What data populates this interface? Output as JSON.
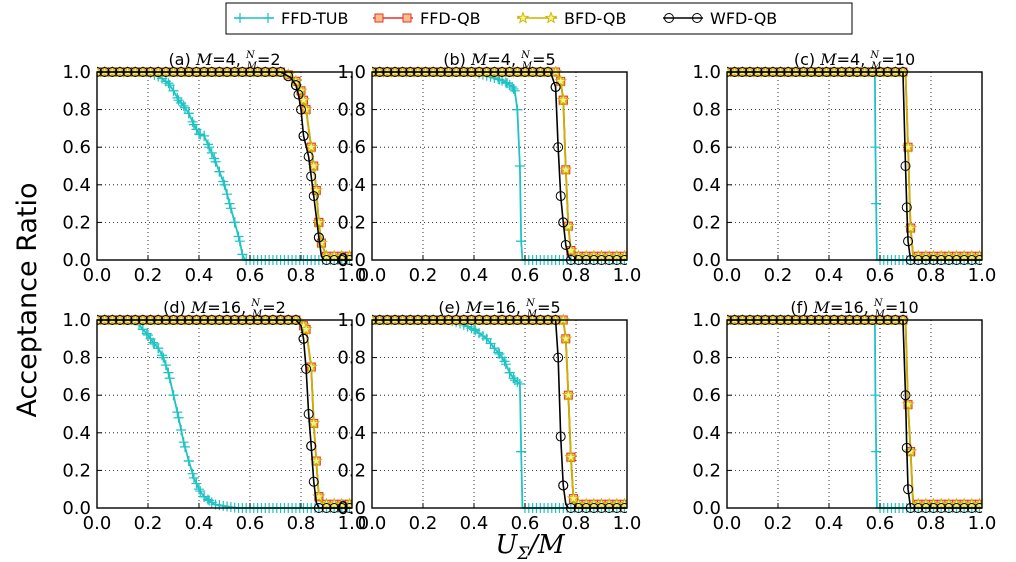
{
  "figure": {
    "ylabel": "Acceptance Ratio",
    "xlabel": "U_Σ/M",
    "xlabel_main": "U",
    "xlabel_sub": "Σ",
    "xlabel_rest": "/M"
  },
  "legend": {
    "entries": [
      {
        "label": "FFD-TUB",
        "color": "#1fc3c3",
        "marker": "plus"
      },
      {
        "label": "FFD-QB",
        "color": "#e8312a",
        "marker": "square"
      },
      {
        "label": "BFD-QB",
        "color": "#c8b400",
        "marker": "star"
      },
      {
        "label": "WFD-QB",
        "color": "#000000",
        "marker": "circle"
      }
    ]
  },
  "colors": {
    "FFD-TUB": "#1fc3c3",
    "FFD-QB": "#e8312a",
    "BFD-QB": "#c8b400",
    "WFD-QB": "#000000"
  },
  "chart_data": [
    {
      "type": "line",
      "title": "(a) M=4, N/M=2",
      "title_parts": {
        "prefix": "(a) ",
        "m": "M",
        "m_val": "=4, ",
        "frac_num": "N",
        "frac_den": "M",
        "n_val": "=2"
      },
      "xlim": [
        0,
        1
      ],
      "ylim": [
        0,
        1
      ],
      "xticks": [
        "0.0",
        "0.2",
        "0.4",
        "0.6",
        "0.8",
        "1.0"
      ],
      "yticks": [
        "0.0",
        "0.2",
        "0.4",
        "0.6",
        "0.8",
        "1.0"
      ],
      "grid": true,
      "series": [
        {
          "name": "FFD-TUB",
          "x": [
            0,
            0.2,
            0.25,
            0.28,
            0.3,
            0.32,
            0.34,
            0.36,
            0.38,
            0.4,
            0.42,
            0.44,
            0.46,
            0.48,
            0.5,
            0.52,
            0.54,
            0.56,
            0.57,
            0.58,
            1.0
          ],
          "y": [
            1,
            1,
            0.97,
            0.94,
            0.9,
            0.85,
            0.82,
            0.78,
            0.72,
            0.67,
            0.66,
            0.6,
            0.54,
            0.47,
            0.4,
            0.3,
            0.2,
            0.1,
            0.03,
            0,
            0
          ]
        },
        {
          "name": "FFD-QB",
          "x": [
            0,
            0.72,
            0.76,
            0.78,
            0.8,
            0.82,
            0.84,
            0.85,
            0.86,
            0.87,
            0.88,
            0.9,
            1.0
          ],
          "y": [
            1,
            1,
            0.98,
            0.95,
            0.9,
            0.8,
            0.6,
            0.5,
            0.37,
            0.2,
            0.09,
            0.02,
            0.02
          ]
        },
        {
          "name": "BFD-QB",
          "x": [
            0,
            0.72,
            0.76,
            0.78,
            0.8,
            0.82,
            0.84,
            0.85,
            0.86,
            0.87,
            0.88,
            0.9,
            1.0
          ],
          "y": [
            1,
            1,
            0.98,
            0.95,
            0.9,
            0.8,
            0.6,
            0.5,
            0.37,
            0.2,
            0.09,
            0.02,
            0.02
          ]
        },
        {
          "name": "WFD-QB",
          "x": [
            0,
            0.72,
            0.76,
            0.78,
            0.79,
            0.8,
            0.81,
            0.83,
            0.85,
            0.87,
            0.88,
            0.89,
            1.0
          ],
          "y": [
            1,
            1,
            0.97,
            0.93,
            0.88,
            0.8,
            0.66,
            0.55,
            0.34,
            0.12,
            0.02,
            0,
            0
          ]
        }
      ]
    },
    {
      "type": "line",
      "title": "(b) M=4, N/M=5",
      "title_parts": {
        "prefix": "(b) ",
        "m": "M",
        "m_val": "=4, ",
        "frac_num": "N",
        "frac_den": "M",
        "n_val": "=5"
      },
      "xlim": [
        0,
        1
      ],
      "ylim": [
        0,
        1
      ],
      "xticks": [
        "0.0",
        "0.2",
        "0.4",
        "0.6",
        "0.8",
        "1.0"
      ],
      "yticks": [
        "0.0",
        "0.2",
        "0.4",
        "0.6",
        "0.8",
        "1.0"
      ],
      "grid": true,
      "series": [
        {
          "name": "FFD-TUB",
          "x": [
            0,
            0.4,
            0.45,
            0.5,
            0.53,
            0.55,
            0.56,
            0.57,
            0.58,
            0.585,
            0.59,
            1.0
          ],
          "y": [
            1,
            1,
            0.98,
            0.96,
            0.94,
            0.92,
            0.9,
            0.8,
            0.5,
            0.1,
            0,
            0
          ]
        },
        {
          "name": "FFD-QB",
          "x": [
            0,
            0.72,
            0.74,
            0.75,
            0.76,
            0.77,
            0.78,
            0.8,
            1.0
          ],
          "y": [
            1,
            1,
            0.95,
            0.85,
            0.48,
            0.18,
            0.05,
            0.02,
            0.02
          ]
        },
        {
          "name": "BFD-QB",
          "x": [
            0,
            0.72,
            0.74,
            0.75,
            0.76,
            0.77,
            0.78,
            0.8,
            1.0
          ],
          "y": [
            1,
            1,
            0.95,
            0.85,
            0.48,
            0.18,
            0.05,
            0.02,
            0.02
          ]
        },
        {
          "name": "WFD-QB",
          "x": [
            0,
            0.7,
            0.72,
            0.73,
            0.74,
            0.75,
            0.76,
            0.77,
            0.78,
            1.0
          ],
          "y": [
            1,
            1,
            0.92,
            0.6,
            0.34,
            0.2,
            0.08,
            0.02,
            0,
            0
          ]
        }
      ]
    },
    {
      "type": "line",
      "title": "(c) M=4, N/M=10",
      "title_parts": {
        "prefix": "(c) ",
        "m": "M",
        "m_val": "=4, ",
        "frac_num": "N",
        "frac_den": "M",
        "n_val": "=10"
      },
      "xlim": [
        0,
        1
      ],
      "ylim": [
        0,
        1
      ],
      "xticks": [
        "0.0",
        "0.2",
        "0.4",
        "0.6",
        "0.8",
        "1.0"
      ],
      "yticks": [
        "0.0",
        "0.2",
        "0.4",
        "0.6",
        "0.8",
        "1.0"
      ],
      "grid": true,
      "series": [
        {
          "name": "FFD-TUB",
          "x": [
            0,
            0.58,
            0.582,
            0.588,
            1.0
          ],
          "y": [
            1,
            1,
            0.6,
            0,
            0
          ]
        },
        {
          "name": "FFD-QB",
          "x": [
            0,
            0.7,
            0.71,
            0.72,
            0.73,
            1.0
          ],
          "y": [
            1,
            1,
            0.6,
            0.17,
            0.02,
            0.02
          ]
        },
        {
          "name": "BFD-QB",
          "x": [
            0,
            0.7,
            0.71,
            0.72,
            0.73,
            1.0
          ],
          "y": [
            1,
            1,
            0.6,
            0.17,
            0.02,
            0.02
          ]
        },
        {
          "name": "WFD-QB",
          "x": [
            0,
            0.69,
            0.7,
            0.705,
            0.71,
            0.72,
            1.0
          ],
          "y": [
            1,
            1,
            0.5,
            0.28,
            0.1,
            0,
            0
          ]
        }
      ]
    },
    {
      "type": "line",
      "title": "(d) M=16, N/M=2",
      "title_parts": {
        "prefix": "(d) ",
        "m": "M",
        "m_val": "=16, ",
        "frac_num": "N",
        "frac_den": "M",
        "n_val": "=2"
      },
      "xlim": [
        0,
        1
      ],
      "ylim": [
        0,
        1
      ],
      "xticks": [
        "0.0",
        "0.2",
        "0.4",
        "0.6",
        "0.8",
        "1.0"
      ],
      "yticks": [
        "0.0",
        "0.2",
        "0.4",
        "0.6",
        "0.8",
        "1.0"
      ],
      "grid": true,
      "series": [
        {
          "name": "FFD-TUB",
          "x": [
            0,
            0.15,
            0.18,
            0.2,
            0.22,
            0.24,
            0.26,
            0.28,
            0.3,
            0.32,
            0.34,
            0.36,
            0.38,
            0.4,
            0.42,
            0.44,
            0.46,
            0.5,
            0.55,
            1.0
          ],
          "y": [
            1,
            1,
            0.95,
            0.92,
            0.88,
            0.85,
            0.8,
            0.72,
            0.6,
            0.48,
            0.35,
            0.25,
            0.16,
            0.1,
            0.06,
            0.04,
            0.02,
            0.01,
            0,
            0
          ]
        },
        {
          "name": "FFD-QB",
          "x": [
            0,
            0.78,
            0.8,
            0.82,
            0.84,
            0.85,
            0.86,
            0.87,
            0.88,
            0.9,
            1.0
          ],
          "y": [
            1,
            1,
            0.99,
            0.95,
            0.75,
            0.45,
            0.25,
            0.06,
            0.03,
            0.02,
            0.02
          ]
        },
        {
          "name": "BFD-QB",
          "x": [
            0,
            0.78,
            0.8,
            0.82,
            0.84,
            0.85,
            0.86,
            0.87,
            0.88,
            0.9,
            1.0
          ],
          "y": [
            1,
            1,
            0.99,
            0.95,
            0.75,
            0.45,
            0.25,
            0.06,
            0.03,
            0.02,
            0.02
          ]
        },
        {
          "name": "WFD-QB",
          "x": [
            0,
            0.78,
            0.8,
            0.81,
            0.82,
            0.83,
            0.84,
            0.85,
            0.86,
            0.87,
            1.0
          ],
          "y": [
            1,
            1,
            0.97,
            0.9,
            0.74,
            0.5,
            0.33,
            0.14,
            0.03,
            0,
            0
          ]
        }
      ]
    },
    {
      "type": "line",
      "title": "(e) M=16, N/M=5",
      "title_parts": {
        "prefix": "(e) ",
        "m": "M",
        "m_val": "=16, ",
        "frac_num": "N",
        "frac_den": "M",
        "n_val": "=5"
      },
      "xlim": [
        0,
        1
      ],
      "ylim": [
        0,
        1
      ],
      "xticks": [
        "0.0",
        "0.2",
        "0.4",
        "0.6",
        "0.8",
        "1.0"
      ],
      "yticks": [
        "0.0",
        "0.2",
        "0.4",
        "0.6",
        "0.8",
        "1.0"
      ],
      "grid": true,
      "series": [
        {
          "name": "FFD-TUB",
          "x": [
            0,
            0.3,
            0.35,
            0.4,
            0.45,
            0.48,
            0.5,
            0.52,
            0.54,
            0.56,
            0.58,
            0.585,
            0.59,
            1.0
          ],
          "y": [
            1,
            1,
            0.98,
            0.95,
            0.9,
            0.85,
            0.82,
            0.78,
            0.72,
            0.68,
            0.66,
            0.3,
            0,
            0
          ]
        },
        {
          "name": "FFD-QB",
          "x": [
            0,
            0.75,
            0.76,
            0.77,
            0.78,
            0.79,
            0.8,
            1.0
          ],
          "y": [
            1,
            1,
            0.9,
            0.6,
            0.27,
            0.05,
            0.02,
            0.02
          ]
        },
        {
          "name": "BFD-QB",
          "x": [
            0,
            0.75,
            0.76,
            0.77,
            0.78,
            0.79,
            0.8,
            1.0
          ],
          "y": [
            1,
            1,
            0.9,
            0.6,
            0.27,
            0.05,
            0.02,
            0.02
          ]
        },
        {
          "name": "WFD-QB",
          "x": [
            0,
            0.72,
            0.73,
            0.74,
            0.75,
            0.76,
            0.77,
            1.0
          ],
          "y": [
            1,
            1,
            0.8,
            0.38,
            0.12,
            0.02,
            0,
            0
          ]
        }
      ]
    },
    {
      "type": "line",
      "title": "(f) M=16, N/M=10",
      "title_parts": {
        "prefix": "(f) ",
        "m": "M",
        "m_val": "=16, ",
        "frac_num": "N",
        "frac_den": "M",
        "n_val": "=10"
      },
      "xlim": [
        0,
        1
      ],
      "ylim": [
        0,
        1
      ],
      "xticks": [
        "0.0",
        "0.2",
        "0.4",
        "0.6",
        "0.8",
        "1.0"
      ],
      "yticks": [
        "0.0",
        "0.2",
        "0.4",
        "0.6",
        "0.8",
        "1.0"
      ],
      "grid": true,
      "series": [
        {
          "name": "FFD-TUB",
          "x": [
            0,
            0.58,
            0.582,
            0.588,
            1.0
          ],
          "y": [
            1,
            1,
            0.6,
            0,
            0
          ]
        },
        {
          "name": "FFD-QB",
          "x": [
            0,
            0.7,
            0.71,
            0.72,
            0.73,
            1.0
          ],
          "y": [
            1,
            1,
            0.55,
            0.3,
            0.02,
            0.02
          ]
        },
        {
          "name": "BFD-QB",
          "x": [
            0,
            0.7,
            0.71,
            0.72,
            0.73,
            1.0
          ],
          "y": [
            1,
            1,
            0.55,
            0.3,
            0.02,
            0.02
          ]
        },
        {
          "name": "WFD-QB",
          "x": [
            0,
            0.69,
            0.7,
            0.705,
            0.71,
            0.72,
            1.0
          ],
          "y": [
            1,
            1,
            0.6,
            0.32,
            0.1,
            0,
            0
          ]
        }
      ]
    }
  ]
}
